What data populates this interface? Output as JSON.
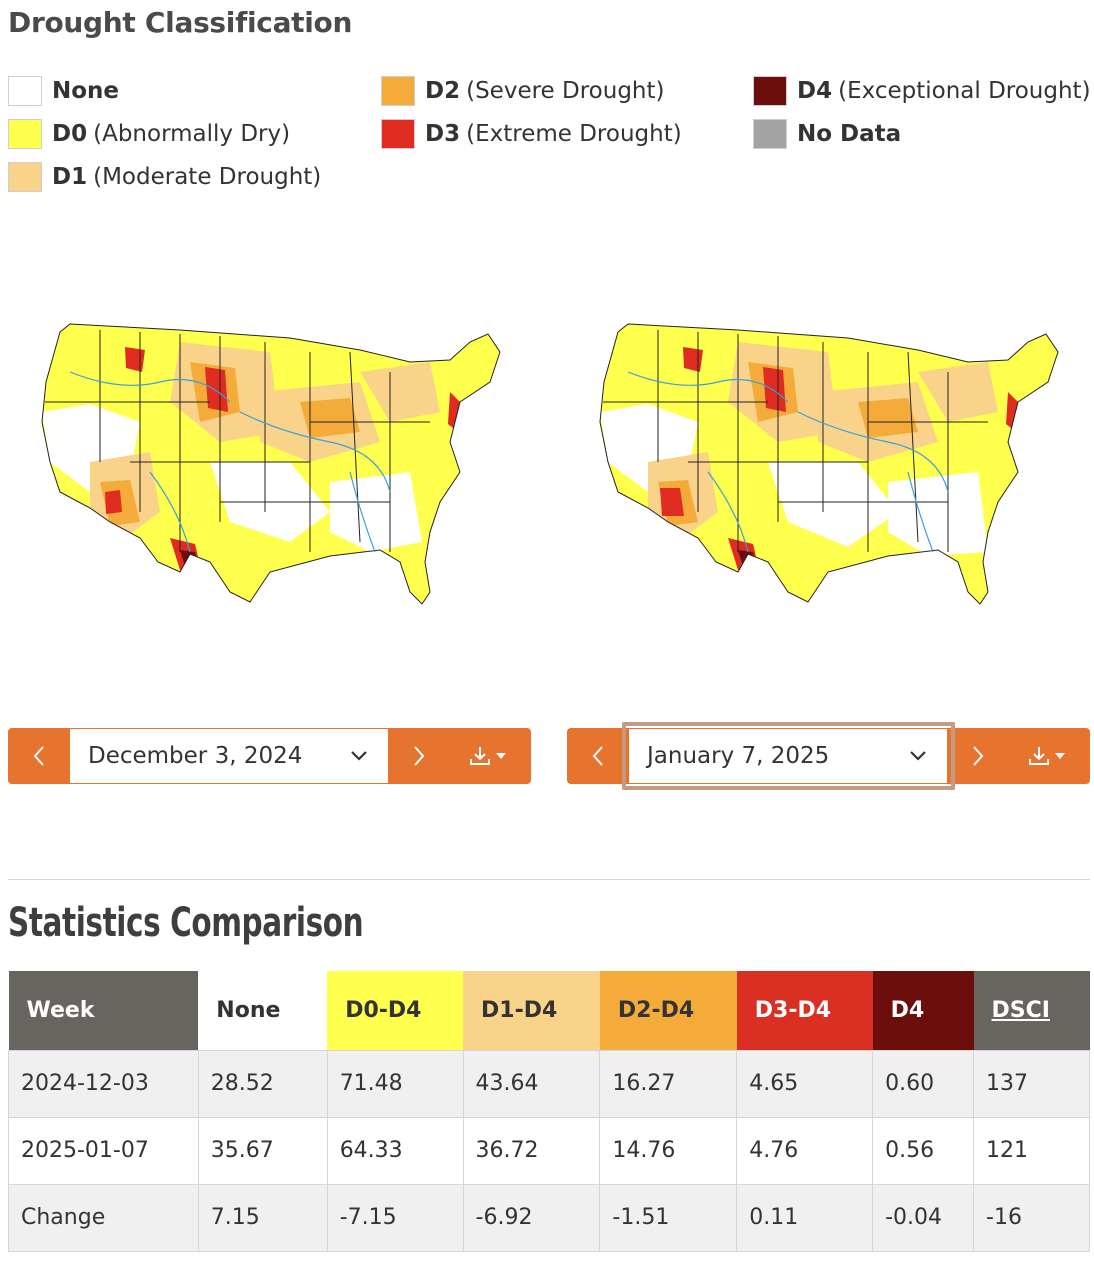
{
  "heading": "Drought Classification",
  "legend": [
    {
      "code": "None",
      "desc": "",
      "color": "#ffffff"
    },
    {
      "code": "D0",
      "desc": "(Abnormally Dry)",
      "color": "#ffff4d"
    },
    {
      "code": "D1",
      "desc": "(Moderate Drought)",
      "color": "#f9d38a"
    },
    {
      "code": "D2",
      "desc": "(Severe Drought)",
      "color": "#f5ab3a"
    },
    {
      "code": "D3",
      "desc": "(Extreme Drought)",
      "color": "#e02b20"
    },
    {
      "code": "No Data",
      "desc": "",
      "color": "#a3a3a3"
    },
    {
      "code": "D4",
      "desc": "(Exceptional Drought)",
      "color": "#6c0e0b"
    }
  ],
  "maps": {
    "left": {
      "date": "December 3, 2024"
    },
    "right": {
      "date": "January 7, 2025"
    }
  },
  "controls": {
    "prev_icon": "chevron-left-icon",
    "next_icon": "chevron-right-icon",
    "dropdown_icon": "chevron-down-icon",
    "download_icon": "download-icon"
  },
  "stats": {
    "title": "Statistics Comparison",
    "headers": [
      "Week",
      "None",
      "D0-D4",
      "D1-D4",
      "D2-D4",
      "D3-D4",
      "D4",
      "DSCI"
    ],
    "header_colors": [
      "#686460",
      "#ffffff",
      "#ffff4d",
      "#f9d38a",
      "#f5ab3a",
      "#d93023",
      "#6c0e0b",
      "#686460"
    ],
    "rows": [
      [
        "2024-12-03",
        "28.52",
        "71.48",
        "43.64",
        "16.27",
        "4.65",
        "0.60",
        "137"
      ],
      [
        "2025-01-07",
        "35.67",
        "64.33",
        "36.72",
        "14.76",
        "4.76",
        "0.56",
        "121"
      ],
      [
        "Change",
        "7.15",
        "-7.15",
        "-6.92",
        "-1.51",
        "0.11",
        "-0.04",
        "-16"
      ]
    ]
  }
}
